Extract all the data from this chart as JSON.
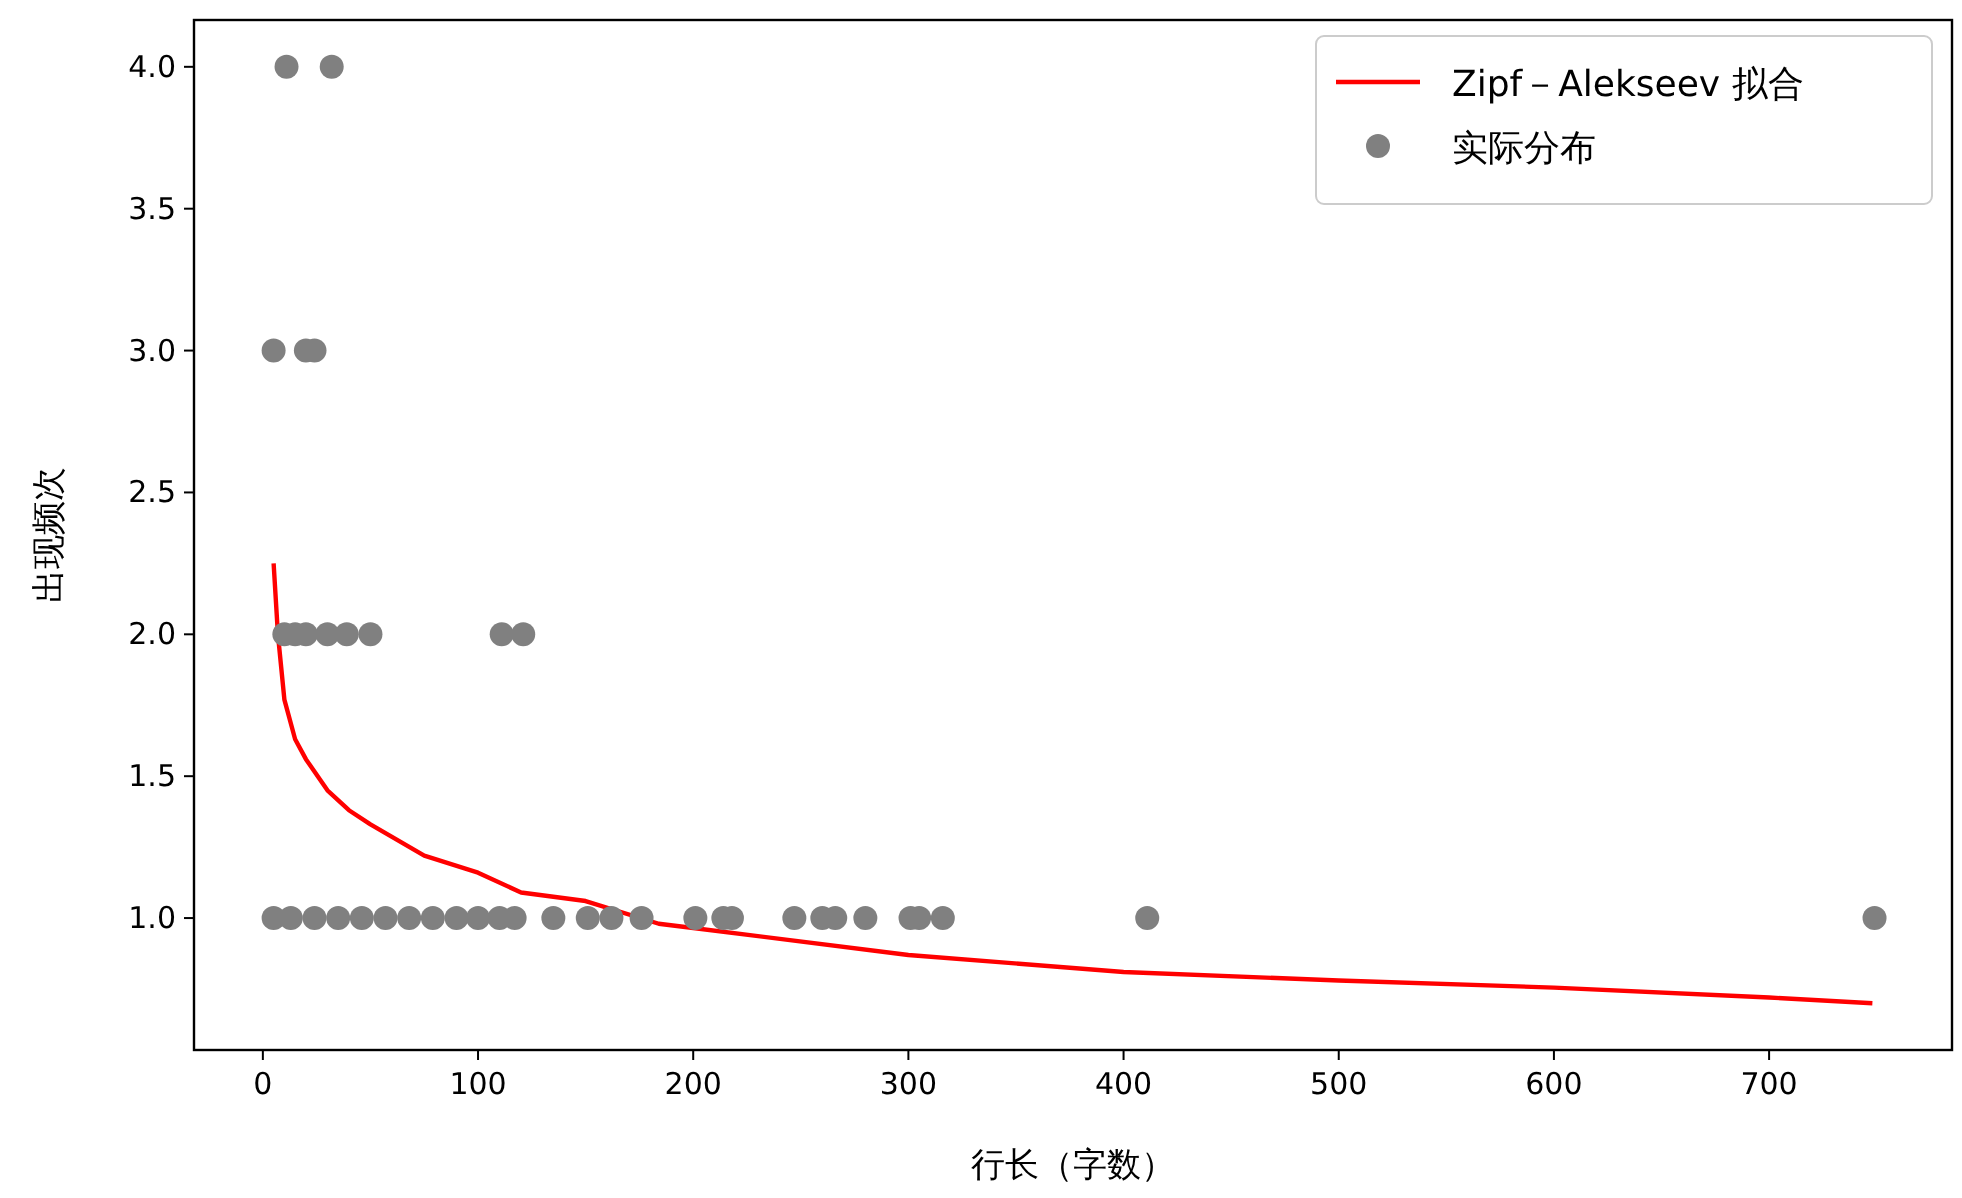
{
  "chart_data": {
    "type": "scatter",
    "xlabel": "行长（字数）",
    "ylabel": "出现频次",
    "xlim": [
      -32,
      785
    ],
    "ylim": [
      0.535,
      4.165
    ],
    "xticks": [
      0,
      100,
      200,
      300,
      400,
      500,
      600,
      700
    ],
    "yticks": [
      {
        "value": 1,
        "label": "1.0"
      },
      {
        "value": 1.5,
        "label": "1.5"
      },
      {
        "value": 2,
        "label": "2.0"
      },
      {
        "value": 2.5,
        "label": "2.5"
      },
      {
        "value": 3,
        "label": "3.0"
      },
      {
        "value": 3.5,
        "label": "3.5"
      },
      {
        "value": 4,
        "label": "4.0"
      }
    ],
    "grid": false,
    "legend": "top right",
    "series": [
      {
        "name": "Zipf－Alekseev 拟合",
        "type": "line",
        "line_style": "solid",
        "color": "#ff0000",
        "x": [
          5,
          7,
          10,
          15,
          20,
          30,
          40,
          50,
          75,
          100,
          120,
          150,
          184,
          200,
          300,
          400,
          500,
          600,
          700,
          748
        ],
        "values": [
          2.25,
          2.0,
          1.77,
          1.63,
          1.56,
          1.45,
          1.38,
          1.33,
          1.22,
          1.16,
          1.09,
          1.06,
          0.98,
          0.965,
          0.87,
          0.81,
          0.78,
          0.755,
          0.72,
          0.7
        ]
      },
      {
        "name": "实际分布",
        "marker": "circle",
        "color": "#808080",
        "x": [
          11,
          32,
          5,
          20,
          24,
          10,
          15,
          20,
          30,
          39,
          50,
          111,
          121,
          5,
          13,
          24,
          35,
          46,
          57,
          68,
          79,
          90,
          100,
          110,
          117,
          135,
          151,
          162,
          176,
          201,
          214,
          218,
          247,
          260,
          266,
          280,
          301,
          305,
          316,
          411,
          749
        ],
        "values": [
          4,
          4,
          3,
          3,
          3,
          2,
          2,
          2,
          2,
          2,
          2,
          2,
          2,
          1,
          1,
          1,
          1,
          1,
          1,
          1,
          1,
          1,
          1,
          1,
          1,
          1,
          1,
          1,
          1,
          1,
          1,
          1,
          1,
          1,
          1,
          1,
          1,
          1,
          1,
          1,
          1
        ]
      }
    ]
  }
}
